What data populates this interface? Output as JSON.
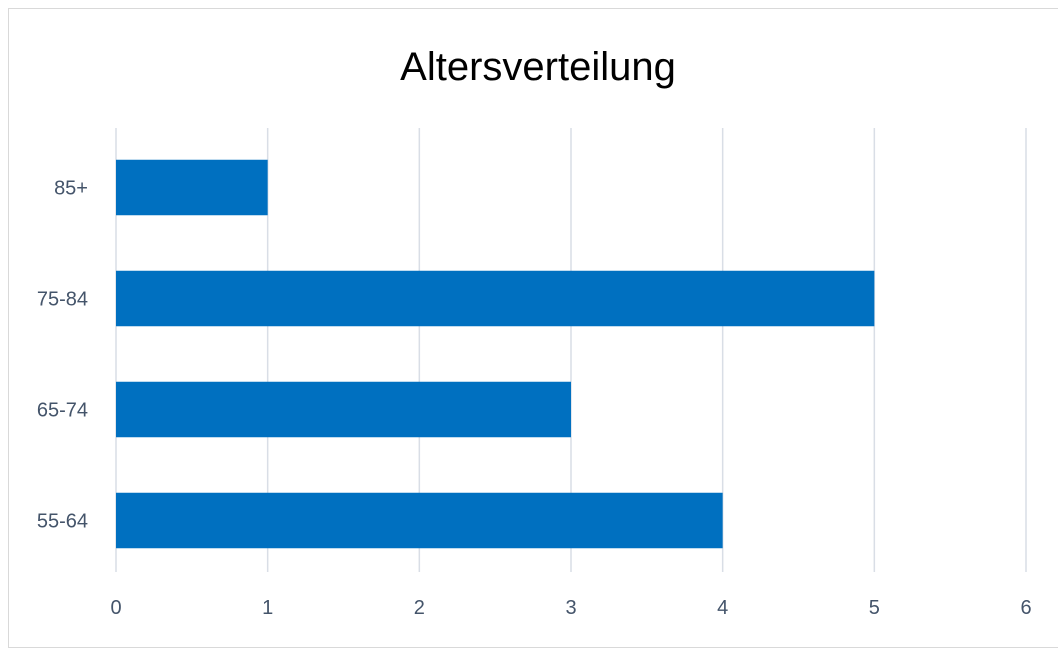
{
  "chart_data": {
    "type": "bar",
    "orientation": "horizontal",
    "title": "Altersverteilung",
    "xlabel": "",
    "ylabel": "",
    "categories": [
      "55-64",
      "65-74",
      "75-84",
      "85+"
    ],
    "values": [
      4,
      3,
      5,
      1
    ],
    "xlim": [
      0,
      6
    ],
    "x_ticks": [
      "0",
      "1",
      "2",
      "3",
      "4",
      "5",
      "6"
    ],
    "grid": "vertical",
    "legend": "none",
    "colors": {
      "bar": "#0070c0",
      "grid": "#d9dee6",
      "tick_text": "#44546a",
      "title": "#000000"
    }
  }
}
